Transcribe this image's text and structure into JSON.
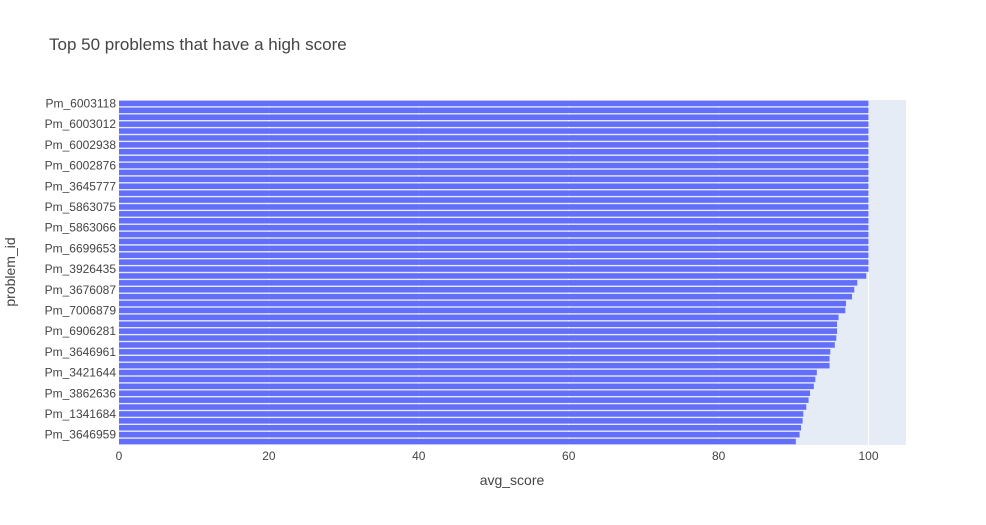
{
  "chart_data": {
    "type": "bar",
    "orientation": "horizontal",
    "title": "Top 50 problems that have a high score",
    "xlabel": "avg_score",
    "ylabel": "problem_id",
    "xlim": [
      0,
      105
    ],
    "x_ticks": [
      0,
      20,
      40,
      60,
      80,
      100
    ],
    "grid": true,
    "bar_color": "#636efa",
    "plot_bg": "#e5ecf6",
    "y_tick_labels": [
      "Pm_6003118",
      "Pm_6003012",
      "Pm_6002938",
      "Pm_6002876",
      "Pm_3645777",
      "Pm_5863075",
      "Pm_5863066",
      "Pm_6699653",
      "Pm_3926435",
      "Pm_3676087",
      "Pm_7006879",
      "Pm_6906281",
      "Pm_3646961",
      "Pm_3421644",
      "Pm_3862636",
      "Pm_1341684",
      "Pm_3646959"
    ],
    "values": [
      100,
      100,
      100,
      100,
      100,
      100,
      100,
      100,
      100,
      100,
      100,
      100,
      100,
      100,
      100,
      100,
      100,
      100,
      100,
      100,
      100,
      100,
      100,
      100,
      100,
      99.7,
      98.5,
      98.1,
      97.8,
      97.0,
      96.9,
      96.0,
      95.8,
      95.8,
      95.7,
      95.5,
      94.9,
      94.8,
      94.8,
      93.1,
      92.9,
      92.7,
      92.2,
      92.0,
      91.7,
      91.3,
      91.2,
      91.0,
      90.8,
      90.3
    ]
  }
}
